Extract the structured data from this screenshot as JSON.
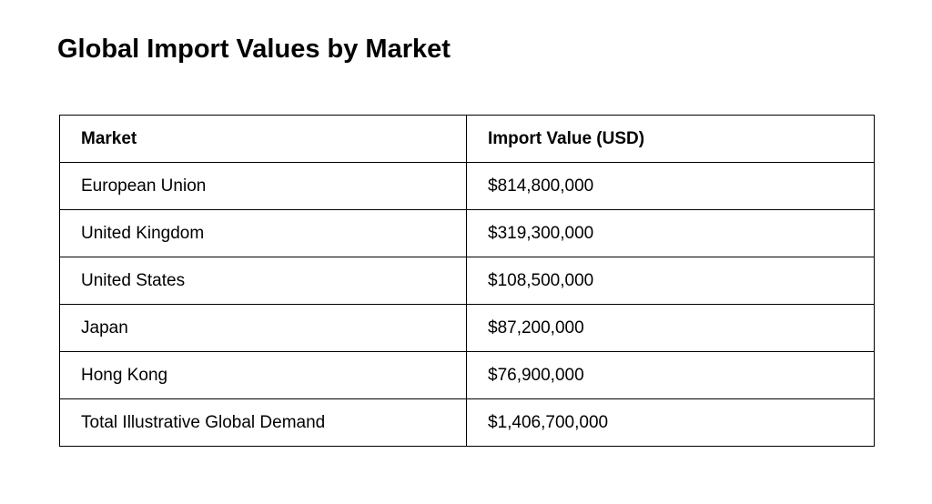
{
  "page": {
    "title": "Global Import Values by Market",
    "background_color": "#ffffff",
    "text_color": "#000000",
    "border_color": "#000000"
  },
  "table": {
    "columns": [
      {
        "label": "Market"
      },
      {
        "label": "Import Value (USD)"
      }
    ],
    "rows": [
      {
        "market": "European Union",
        "value": "$814,800,000"
      },
      {
        "market": "United Kingdom",
        "value": "$319,300,000"
      },
      {
        "market": "United States",
        "value": "$108,500,000"
      },
      {
        "market": "Japan",
        "value": "$87,200,000"
      },
      {
        "market": "Hong Kong",
        "value": "$76,900,000"
      },
      {
        "market": "Total Illustrative Global Demand",
        "value": "$1,406,700,000"
      }
    ]
  }
}
